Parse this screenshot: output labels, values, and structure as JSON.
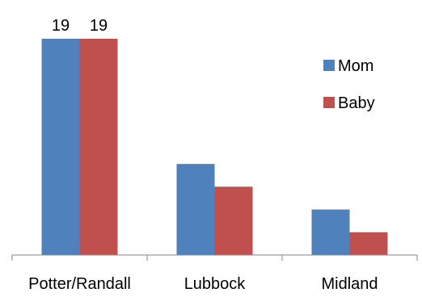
{
  "chart_data": {
    "type": "bar",
    "categories": [
      "Potter/Randall",
      "Lubbock",
      "Midland"
    ],
    "series": [
      {
        "name": "Mom",
        "color": "#4F81BD",
        "values": [
          19,
          8,
          4
        ]
      },
      {
        "name": "Baby",
        "color": "#C0504D",
        "values": [
          19,
          6,
          2
        ]
      }
    ],
    "data_labels": {
      "series": [
        [
          19,
          null,
          null
        ],
        [
          19,
          null,
          null
        ]
      ]
    },
    "ylim": [
      0,
      19
    ],
    "grid": false,
    "legend_position": "right",
    "title": "",
    "xlabel": "",
    "ylabel": ""
  }
}
